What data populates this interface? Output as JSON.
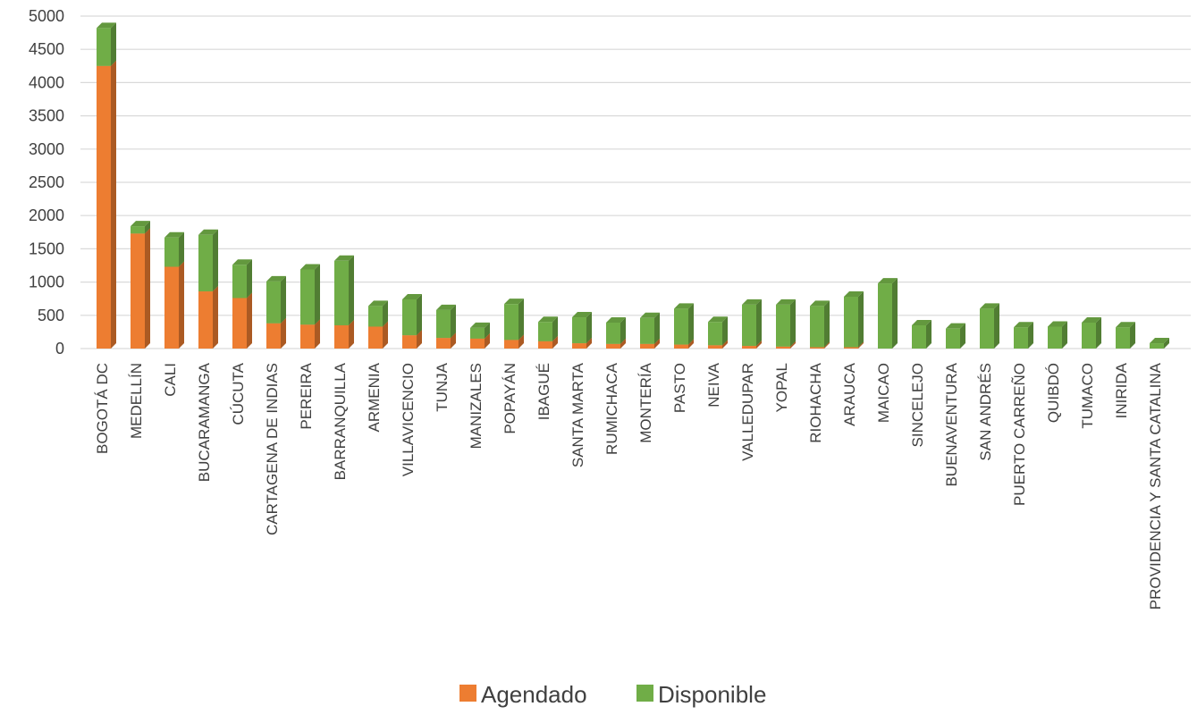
{
  "chart_data": {
    "type": "bar",
    "stacked": true,
    "three_d": true,
    "title": "",
    "xlabel": "",
    "ylabel": "",
    "ylim": [
      0,
      5000
    ],
    "yticks": [
      0,
      500,
      1000,
      1500,
      2000,
      2500,
      3000,
      3500,
      4000,
      4500,
      5000
    ],
    "grid": true,
    "legend_position": "bottom",
    "categories": [
      "BOGOTÁ DC",
      "MEDELLÍN",
      "CALI",
      "BUCARAMANGA",
      "CÚCUTA",
      "CARTAGENA DE INDIAS",
      "PEREIRA",
      "BARRANQUILLA",
      "ARMENIA",
      "VILLAVICENCIO",
      "TUNJA",
      "MANIZALES",
      "POPAYÁN",
      "IBAGUÉ",
      "SANTA MARTA",
      "RUMICHACA",
      "MONTERÍA",
      "PASTO",
      "NEIVA",
      "VALLEDUPAR",
      "YOPAL",
      "RIOHACHA",
      "ARAUCA",
      "MAICAO",
      "SINCELEJO",
      "BUENAVENTURA",
      "SAN ANDRÉS",
      "PUERTO CARREÑO",
      "QUIBDÓ",
      "TUMACO",
      "INIRIDA",
      "PROVIDENCIA Y SANTA CATALINA"
    ],
    "series": [
      {
        "name": "Agendado",
        "color": "#ED7D31",
        "values": [
          4250,
          1730,
          1230,
          860,
          760,
          380,
          360,
          350,
          330,
          200,
          160,
          150,
          130,
          110,
          80,
          70,
          70,
          60,
          50,
          40,
          30,
          20,
          20,
          0,
          0,
          0,
          0,
          0,
          0,
          0,
          0,
          0
        ]
      },
      {
        "name": "Disponible",
        "color": "#70AD47",
        "values": [
          570,
          110,
          440,
          850,
          500,
          630,
          830,
          970,
          310,
          540,
          420,
          160,
          540,
          290,
          390,
          320,
          390,
          540,
          350,
          620,
          630,
          620,
          760,
          980,
          350,
          300,
          600,
          320,
          330,
          390,
          320,
          80
        ]
      }
    ]
  }
}
